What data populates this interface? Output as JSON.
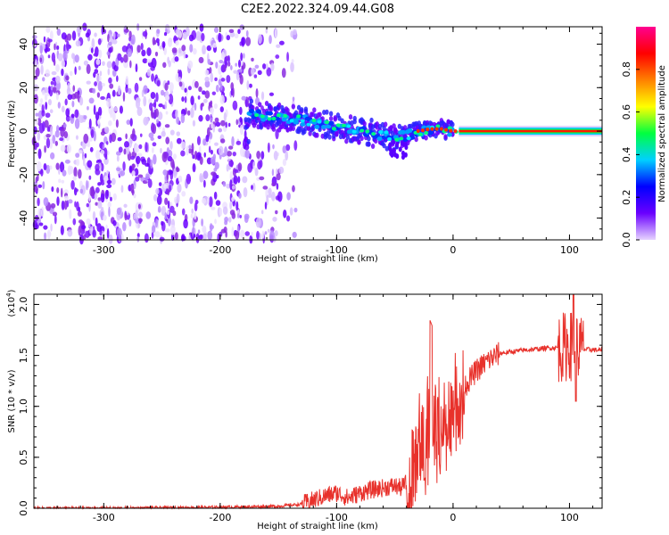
{
  "chart_data": [
    {
      "type": "heatmap",
      "title": "C2E2.2022.324.09.44.G08",
      "xlabel": "Height of straight line (km)",
      "ylabel": "Frequency (Hz)",
      "xlim": [
        -360,
        128
      ],
      "ylim": [
        -50,
        48
      ],
      "x_ticks": [
        -300,
        -200,
        -100,
        0,
        100
      ],
      "y_ticks": [
        -40,
        -20,
        0,
        20,
        40
      ],
      "colorbar": {
        "label": "Normalized spectral amplitude",
        "range": [
          0,
          1
        ],
        "ticks": [
          "0.0",
          "0.2",
          "0.4",
          "0.6",
          "0.8"
        ],
        "colors": [
          "#e6d4ff",
          "#6a00ff",
          "#0000ff",
          "#00d0ff",
          "#00ff40",
          "#ffff00",
          "#ff8000",
          "#ff0000",
          "#ff0090"
        ]
      },
      "features": {
        "noise_region_x": [
          -360,
          -135
        ],
        "signal_ridge": {
          "x": [
            -175,
            -160,
            -140,
            -130,
            -120,
            -110,
            -100,
            -90,
            -80,
            -70,
            -60,
            -50,
            -40,
            -30,
            -20,
            -10,
            0,
            10,
            50,
            100,
            128
          ],
          "y": [
            8,
            7,
            6,
            5,
            4,
            3,
            2,
            1,
            0,
            -1,
            -2,
            -3,
            -2,
            0,
            1,
            1,
            0,
            0,
            0,
            0,
            0
          ]
        }
      }
    },
    {
      "type": "line",
      "xlabel": "Height of straight line (km)",
      "ylabel": "SNR (10 * v/v)",
      "yscale_note": "(x10",
      "yscale_exp": "4",
      "yscale_close": ")",
      "xlim": [
        -360,
        128
      ],
      "ylim": [
        0,
        2.1
      ],
      "x_ticks": [
        -300,
        -200,
        -100,
        0,
        100
      ],
      "y_ticks": [
        "0.0",
        "0.5",
        "1.0",
        "1.5",
        "2.0"
      ],
      "series": [
        {
          "color": "#e8312b",
          "x": [
            -360,
            -300,
            -200,
            -150,
            -130,
            -120,
            -110,
            -100,
            -90,
            -80,
            -70,
            -60,
            -50,
            -45,
            -40,
            -35,
            -30,
            -25,
            -20,
            -15,
            -10,
            -5,
            0,
            10,
            20,
            30,
            40,
            60,
            80,
            95,
            100,
            105,
            110,
            128
          ],
          "y": [
            0.0,
            0.0,
            0.01,
            0.02,
            0.04,
            0.08,
            0.12,
            0.15,
            0.1,
            0.15,
            0.18,
            0.2,
            0.22,
            0.2,
            0.25,
            0.35,
            0.9,
            0.7,
            0.95,
            0.8,
            0.9,
            0.9,
            1.05,
            1.2,
            1.35,
            1.45,
            1.52,
            1.55,
            1.57,
            1.58,
            1.6,
            1.58,
            1.56,
            1.55
          ]
        }
      ]
    }
  ]
}
